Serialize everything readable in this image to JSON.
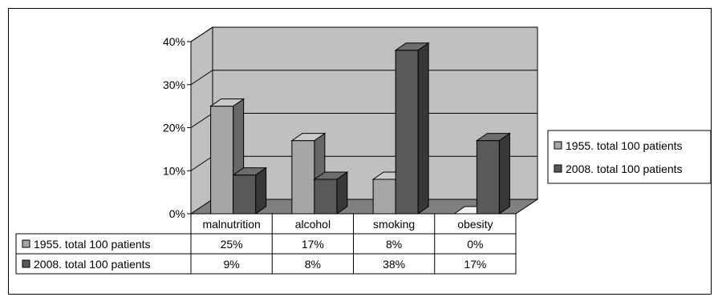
{
  "chart_data": {
    "type": "bar",
    "categories": [
      "malnutrition",
      "alcohol",
      "smoking",
      "obesity"
    ],
    "series": [
      {
        "name": "1955. total 100 patients",
        "values": [
          25,
          17,
          8,
          0
        ],
        "labels": [
          "25%",
          "17%",
          "8%",
          "0%"
        ],
        "color": "#a6a6a6"
      },
      {
        "name": "2008. total 100 patients",
        "values": [
          9,
          8,
          38,
          17
        ],
        "labels": [
          "9%",
          "8%",
          "38%",
          "17%"
        ],
        "color": "#595959"
      }
    ],
    "yticks": [
      "0%",
      "10%",
      "20%",
      "30%",
      "40%"
    ],
    "ylim": [
      0,
      40
    ],
    "grid": true,
    "legend": "right",
    "data_table": true,
    "wall_color": "#c0c0c0",
    "floor_color": "#808080"
  }
}
